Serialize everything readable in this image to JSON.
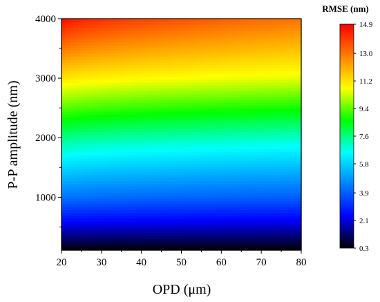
{
  "chart_data": {
    "type": "heatmap",
    "xlabel": "OPD (μm)",
    "ylabel": "P-P amplitude (nm)",
    "xlim": [
      20,
      80
    ],
    "ylim": [
      110,
      4000
    ],
    "x_ticks": [
      "20",
      "30",
      "40",
      "50",
      "60",
      "70",
      "80"
    ],
    "y_ticks": [
      "1000",
      "2000",
      "3000",
      "4000"
    ],
    "colorbar": {
      "title": "RMSE (nm)",
      "min": 0.3,
      "max": 14.9,
      "ticks": [
        "14.9",
        "13.0",
        "11.2",
        "9.4",
        "7.6",
        "5.8",
        "3.9",
        "2.1",
        "0.3"
      ],
      "colors": [
        "#000000",
        "#0000ff",
        "#0080ff",
        "#00ffff",
        "#00ff00",
        "#ffff00",
        "#ff8000",
        "#ff0000"
      ]
    },
    "description_values": {
      "x": [
        20,
        30,
        40,
        50,
        60,
        70,
        80
      ],
      "y": [
        110,
        1000,
        2000,
        3000,
        4000
      ],
      "rmse_at_x20": [
        0.3,
        4.3,
        7.6,
        11.2,
        14.9
      ],
      "rmse_at_x80": [
        0.3,
        3.9,
        7.0,
        10.5,
        13.0
      ]
    }
  }
}
